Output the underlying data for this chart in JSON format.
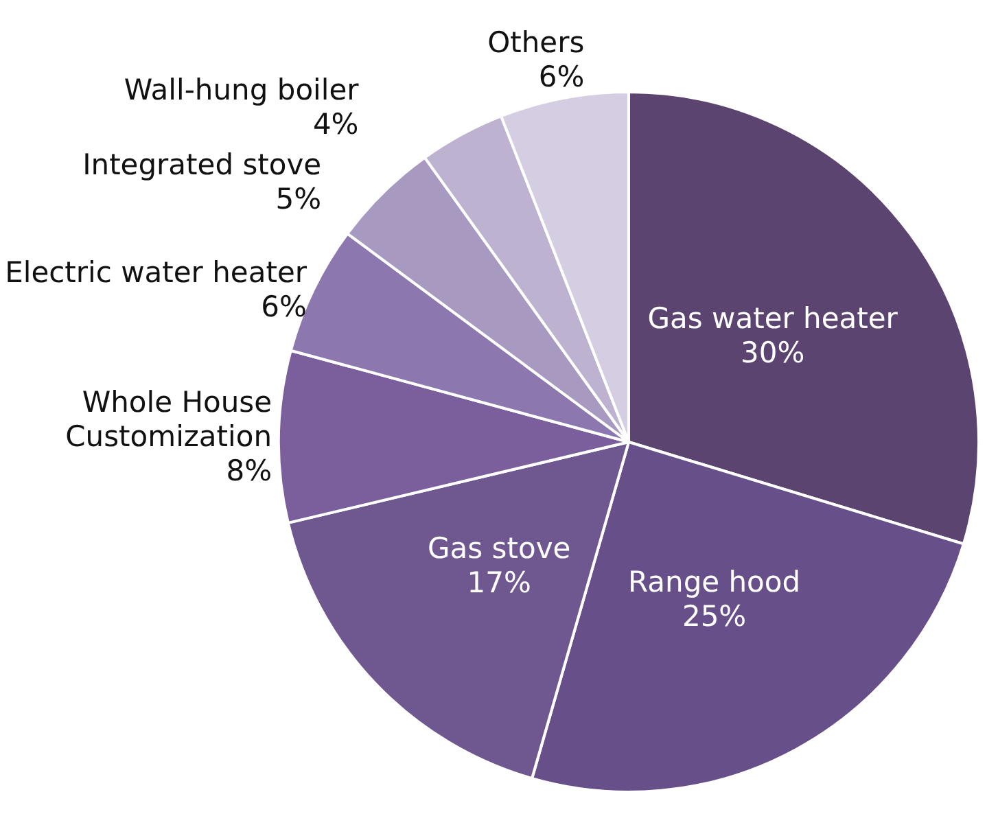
{
  "chart_data": {
    "type": "pie",
    "categories": [
      "Gas water heater",
      "Range hood",
      "Gas stove",
      "Whole House\nCustomization",
      "Electric water heater",
      "Integrated stove",
      "Wall-hung boiler",
      "Others"
    ],
    "values": [
      30,
      25,
      17,
      8,
      6,
      5,
      4,
      6
    ],
    "value_labels": [
      "30%",
      "25%",
      "17%",
      "8%",
      "6%",
      "5%",
      "4%",
      "6%"
    ],
    "colors": [
      "#5b4570",
      "#67508a",
      "#6f5890",
      "#7b5f9c",
      "#8c78ae",
      "#a899c0",
      "#bdb2cf",
      "#d5cde2"
    ]
  }
}
